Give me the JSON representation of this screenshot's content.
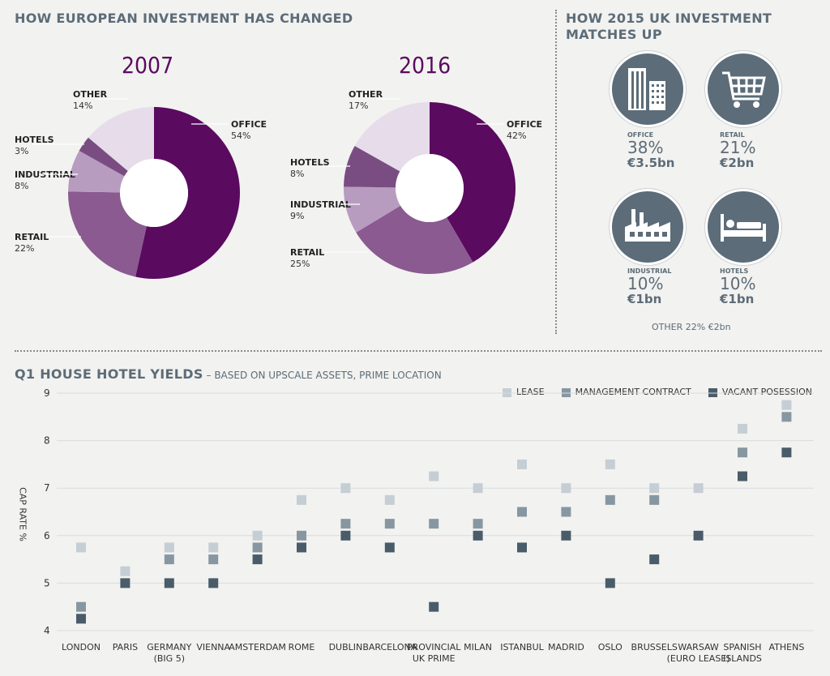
{
  "european": {
    "title": "HOW EUROPEAN INVESTMENT HAS CHANGED",
    "charts": [
      {
        "year": "2007",
        "slices": [
          {
            "name": "OFFICE",
            "pct": 54,
            "label": "54%",
            "color": "#5a0a5f"
          },
          {
            "name": "RETAIL",
            "pct": 22,
            "label": "22%",
            "color": "#8a5a90"
          },
          {
            "name": "INDUSTRIAL",
            "pct": 8,
            "label": "8%",
            "color": "#b89cc0"
          },
          {
            "name": "HOTELS",
            "pct": 3,
            "label": "3%",
            "color": "#7a4d82"
          },
          {
            "name": "OTHER",
            "pct": 14,
            "label": "14%",
            "color": "#e7dcea"
          }
        ]
      },
      {
        "year": "2016",
        "slices": [
          {
            "name": "OFFICE",
            "pct": 42,
            "label": "42%",
            "color": "#5a0a5f"
          },
          {
            "name": "RETAIL",
            "pct": 25,
            "label": "25%",
            "color": "#8a5a90"
          },
          {
            "name": "INDUSTRIAL",
            "pct": 9,
            "label": "9%",
            "color": "#b89cc0"
          },
          {
            "name": "HOTELS",
            "pct": 8,
            "label": "8%",
            "color": "#7a4d82"
          },
          {
            "name": "OTHER",
            "pct": 17,
            "label": "17%",
            "color": "#e7dcea"
          }
        ]
      }
    ]
  },
  "uk": {
    "title_line1": "HOW 2015 UK INVESTMENT",
    "title_line2": "MATCHES UP",
    "stats": [
      {
        "icon": "office-building-icon",
        "label": "OFFICE",
        "pct": "38%",
        "amount": "€3.5bn"
      },
      {
        "icon": "shopping-cart-icon",
        "label": "RETAIL",
        "pct": "21%",
        "amount": "€2bn"
      },
      {
        "icon": "factory-icon",
        "label": "INDUSTRIAL",
        "pct": "10%",
        "amount": "€1bn"
      },
      {
        "icon": "bed-icon",
        "label": "HOTELS",
        "pct": "10%",
        "amount": "€1bn"
      }
    ],
    "other": "OTHER 22% €2bn"
  },
  "yields": {
    "title_bold": "Q1 HOUSE HOTEL YIELDS",
    "title_rest": " – BASED ON UPSCALE ASSETS, PRIME LOCATION"
  },
  "chart_data": {
    "type": "scatter",
    "ylabel": "CAP RATE %",
    "ylim": [
      4,
      9
    ],
    "yticks": [
      4,
      5,
      6,
      7,
      8,
      9
    ],
    "legend_position": "top-right",
    "categories": [
      {
        "name": "LONDON",
        "lines": [
          "LONDON"
        ]
      },
      {
        "name": "PARIS",
        "lines": [
          "PARIS"
        ]
      },
      {
        "name": "GERMANY (BIG 5)",
        "lines": [
          "GERMANY",
          "(BIG 5)"
        ]
      },
      {
        "name": "VIENNA",
        "lines": [
          "VIENNA"
        ]
      },
      {
        "name": "AMSTERDAM",
        "lines": [
          "AMSTERDAM"
        ]
      },
      {
        "name": "ROME",
        "lines": [
          "ROME"
        ]
      },
      {
        "name": "DUBLIN",
        "lines": [
          "DUBLIN"
        ]
      },
      {
        "name": "BARCELONA",
        "lines": [
          "BARCELONA"
        ]
      },
      {
        "name": "PROVINCIAL UK PRIME",
        "lines": [
          "PROVINCIAL",
          "UK PRIME"
        ]
      },
      {
        "name": "MILAN",
        "lines": [
          "MILAN"
        ]
      },
      {
        "name": "ISTANBUL",
        "lines": [
          "ISTANBUL"
        ]
      },
      {
        "name": "MADRID",
        "lines": [
          "MADRID"
        ]
      },
      {
        "name": "OSLO",
        "lines": [
          "OSLO"
        ]
      },
      {
        "name": "BRUSSELS",
        "lines": [
          "BRUSSELS"
        ]
      },
      {
        "name": "WARSAW (EURO LEASE)",
        "lines": [
          "WARSAW",
          "(EURO LEASE)"
        ]
      },
      {
        "name": "SPANISH ISLANDS",
        "lines": [
          "SPANISH",
          "ISLANDS"
        ]
      },
      {
        "name": "ATHENS",
        "lines": [
          "ATHENS"
        ]
      }
    ],
    "series": [
      {
        "name": "LEASE",
        "color": "#c5ced4",
        "values": [
          5.75,
          5.25,
          5.75,
          5.75,
          6.0,
          6.75,
          7.0,
          6.75,
          7.25,
          7.0,
          7.5,
          7.0,
          7.5,
          7.0,
          7.0,
          8.25,
          8.75
        ]
      },
      {
        "name": "MANAGEMENT CONTRACT",
        "color": "#8797a2",
        "values": [
          4.5,
          null,
          5.5,
          5.5,
          5.75,
          6.0,
          6.25,
          6.25,
          6.25,
          6.25,
          6.5,
          6.5,
          6.75,
          6.75,
          null,
          7.75,
          8.5
        ]
      },
      {
        "name": "VACANT POSESSION",
        "color": "#4a5c69",
        "values": [
          4.25,
          5.0,
          5.0,
          5.0,
          5.5,
          5.75,
          6.0,
          5.75,
          4.5,
          6.0,
          5.75,
          6.0,
          5.0,
          5.5,
          6.0,
          7.25,
          7.75
        ]
      }
    ]
  }
}
